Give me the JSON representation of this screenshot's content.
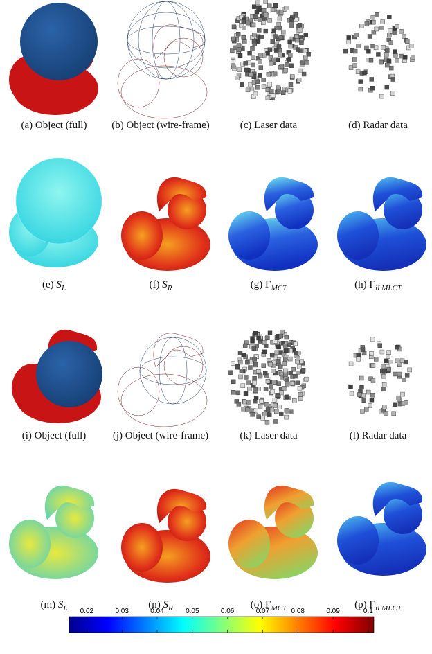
{
  "figure": {
    "captions": [
      {
        "text": "(a) Object (full)"
      },
      {
        "text": "(b) Object (wire-frame)"
      },
      {
        "text": "(c) Laser data"
      },
      {
        "text": "(d) Radar data"
      },
      {
        "label": "(e)",
        "symbol": "S",
        "sub": "L"
      },
      {
        "label": "(f)",
        "symbol": "S",
        "sub": "R"
      },
      {
        "label": "(g)",
        "symbol": "Γ",
        "sub": "MCT"
      },
      {
        "label": "(h)",
        "symbol": "Γ",
        "sub": "iLMLCT"
      },
      {
        "text": "(i) Object (full)"
      },
      {
        "text": "(j) Object (wire-frame)"
      },
      {
        "text": "(k) Laser data"
      },
      {
        "text": "(l) Radar data"
      },
      {
        "label": "(m)",
        "symbol": "S",
        "sub": "L"
      },
      {
        "label": "(n)",
        "symbol": "S",
        "sub": "R"
      },
      {
        "label": "(o)",
        "symbol": "Γ",
        "sub": "MCT"
      },
      {
        "label": "(p)",
        "symbol": "Γ",
        "sub": "iLMLCT"
      }
    ],
    "colorbar": {
      "lim": [
        0.015,
        0.1016
      ],
      "ticks": [
        0.02,
        0.03,
        0.04,
        0.05,
        0.06,
        0.07,
        0.08,
        0.09,
        0.1
      ]
    }
  }
}
